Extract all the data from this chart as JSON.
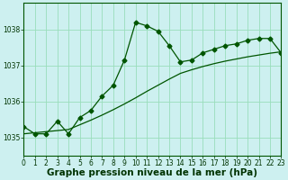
{
  "title": "Graphe pression niveau de la mer (hPa)",
  "bg_color": "#cdf0f0",
  "grid_color": "#99ddbb",
  "line_color": "#005500",
  "marker": "D",
  "marker_size": 2.5,
  "xlim": [
    0,
    23
  ],
  "ylim": [
    1034.5,
    1038.75
  ],
  "yticks": [
    1035,
    1036,
    1037,
    1038
  ],
  "xticks": [
    0,
    1,
    2,
    3,
    4,
    5,
    6,
    7,
    8,
    9,
    10,
    11,
    12,
    13,
    14,
    15,
    16,
    17,
    18,
    19,
    20,
    21,
    22,
    23
  ],
  "series1_x": [
    0,
    1,
    2,
    3,
    4,
    5,
    6,
    7,
    8,
    9,
    10,
    11,
    12,
    13,
    14,
    15,
    16,
    17,
    18,
    19,
    20,
    21,
    22,
    23
  ],
  "series1_y": [
    1035.3,
    1035.1,
    1035.1,
    1035.45,
    1035.1,
    1035.55,
    1035.75,
    1036.15,
    1036.45,
    1037.15,
    1038.2,
    1038.1,
    1037.95,
    1037.55,
    1037.1,
    1037.15,
    1037.35,
    1037.45,
    1037.55,
    1037.6,
    1037.7,
    1037.75,
    1037.75,
    1037.35
  ],
  "series2_x": [
    0,
    1,
    2,
    3,
    4,
    5,
    6,
    7,
    8,
    9,
    10,
    11,
    12,
    13,
    14,
    15,
    16,
    17,
    18,
    19,
    20,
    21,
    22,
    23
  ],
  "series2_y": [
    1035.1,
    1035.13,
    1035.16,
    1035.19,
    1035.22,
    1035.35,
    1035.48,
    1035.62,
    1035.77,
    1035.93,
    1036.1,
    1036.28,
    1036.45,
    1036.62,
    1036.78,
    1036.88,
    1036.97,
    1037.05,
    1037.12,
    1037.18,
    1037.24,
    1037.29,
    1037.34,
    1037.38
  ],
  "title_fontsize": 7.5,
  "tick_fontsize": 5.5,
  "title_color": "#003300",
  "tick_color": "#003300",
  "spine_color": "#005500"
}
